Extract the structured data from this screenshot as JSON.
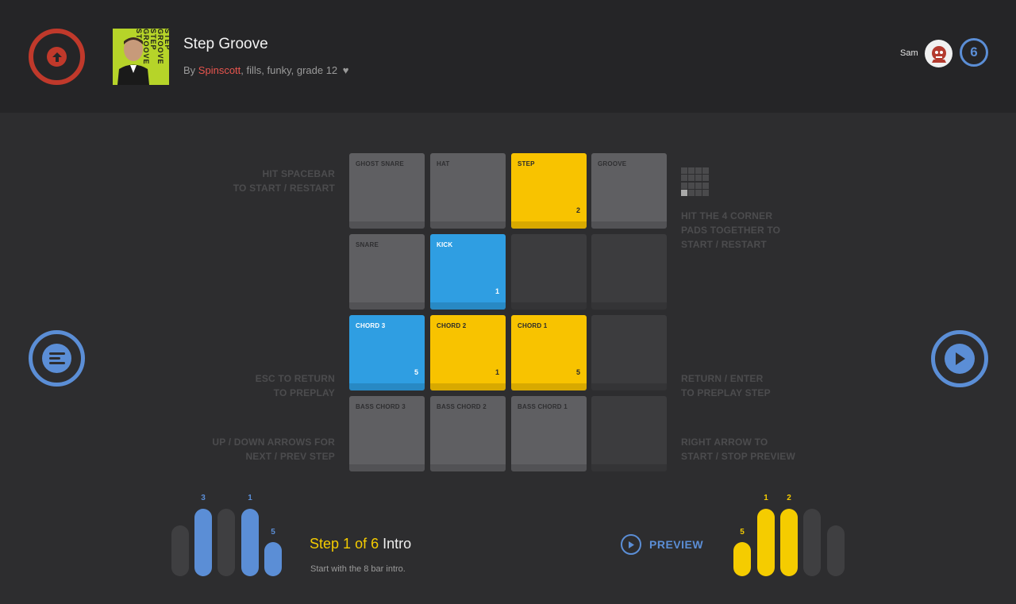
{
  "header": {
    "title": "Step Groove",
    "by_prefix": "By ",
    "author": "Spinscott",
    "tags": ", fills, funky, grade 12",
    "heart": "♥",
    "cover_text": "STEP GROOVE STEP GROOVE STEP",
    "user": "Sam",
    "level": "6"
  },
  "hints": {
    "spacebar": [
      "HIT SPACEBAR",
      "TO START / RESTART"
    ],
    "esc": [
      "ESC TO RETURN",
      "TO PREPLAY"
    ],
    "updown": [
      "UP / DOWN ARROWS FOR",
      "NEXT / PREV STEP"
    ],
    "corners": [
      "HIT THE 4 CORNER",
      "PADS TOGETHER TO",
      "START / RESTART"
    ],
    "return": [
      "RETURN / ENTER",
      "TO PREPLAY STEP"
    ],
    "right": [
      "RIGHT ARROW TO",
      "START / STOP PREVIEW"
    ]
  },
  "pads": [
    {
      "label": "GHOST SNARE",
      "num": "",
      "color": "gray"
    },
    {
      "label": "HAT",
      "num": "",
      "color": "gray"
    },
    {
      "label": "STEP",
      "num": "2",
      "color": "yellow"
    },
    {
      "label": "GROOVE",
      "num": "",
      "color": "gray"
    },
    {
      "label": "SNARE",
      "num": "",
      "color": "gray"
    },
    {
      "label": "KICK",
      "num": "1",
      "color": "blue"
    },
    {
      "label": "",
      "num": "",
      "color": "dark"
    },
    {
      "label": "",
      "num": "",
      "color": "dark"
    },
    {
      "label": "CHORD 3",
      "num": "5",
      "color": "blue"
    },
    {
      "label": "CHORD 2",
      "num": "1",
      "color": "yellow"
    },
    {
      "label": "CHORD 1",
      "num": "5",
      "color": "yellow"
    },
    {
      "label": "",
      "num": "",
      "color": "dark"
    },
    {
      "label": "BASS CHORD 3",
      "num": "",
      "color": "gray"
    },
    {
      "label": "BASS CHORD 2",
      "num": "",
      "color": "gray"
    },
    {
      "label": "BASS CHORD 1",
      "num": "",
      "color": "gray"
    },
    {
      "label": "",
      "num": "",
      "color": "dark"
    }
  ],
  "left_bars": [
    {
      "color": "gray",
      "label": ""
    },
    {
      "color": "blue",
      "label": "3"
    },
    {
      "color": "gray",
      "label": ""
    },
    {
      "color": "blue",
      "label": "1"
    },
    {
      "color": "blue",
      "label": "5"
    }
  ],
  "right_bars": [
    {
      "color": "yellow",
      "label": "5"
    },
    {
      "color": "yellow",
      "label": "1"
    },
    {
      "color": "yellow",
      "label": "2"
    },
    {
      "color": "gray",
      "label": ""
    },
    {
      "color": "gray",
      "label": ""
    }
  ],
  "step": {
    "step_word": "Step",
    "current": "1",
    "of_word": "of",
    "total": "6",
    "name": "Intro",
    "description": "Start with the 8 bar intro."
  },
  "preview_label": "PREVIEW",
  "colors": {
    "accent_blue": "#5b8ed6",
    "accent_yellow": "#f5cc00",
    "accent_red": "#c0392b",
    "pad_blue": "#2f9ee2"
  }
}
